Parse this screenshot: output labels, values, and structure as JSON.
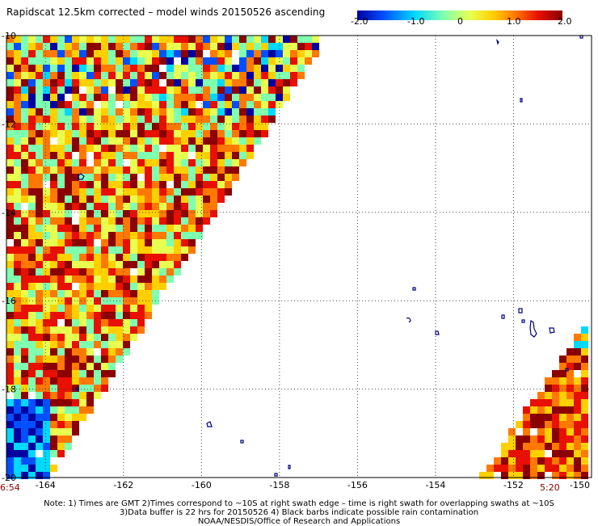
{
  "title": "Rapidscat 12.5km corrected – model winds 20150526 ascending",
  "colorbar": {
    "tick_labels": [
      "-2.0",
      "-1.0",
      "0",
      "1.0",
      "2.0"
    ],
    "range": [
      -2.0,
      2.0
    ],
    "colors": [
      "#0000a0",
      "#0050ff",
      "#00d8ff",
      "#7fffb0",
      "#e8ff50",
      "#ffd000",
      "#ff7800",
      "#e81000",
      "#8b0000"
    ]
  },
  "map": {
    "lon_labels": [
      "-164",
      "-162",
      "-160",
      "-158",
      "-156",
      "-154",
      "-152",
      "-150"
    ],
    "lat_labels": [
      "-10",
      "-12",
      "-14",
      "-16",
      "-18",
      "-20"
    ],
    "lon_range": [
      -165,
      -150
    ],
    "lat_range": [
      -20,
      -10
    ],
    "gridlines": "dotted",
    "land_color": "#000080"
  },
  "swath_times": {
    "left": "6:54",
    "right": "5:20"
  },
  "notes": [
    "Note: 1) Times are GMT 2)Times correspond to ~10S at right swath edge – time is right swath for overlapping swaths at ~10S",
    "3)Data buffer is 22 hrs for 20150526 4) Black barbs indicate possible rain contamination",
    "NOAA/NESDIS/Office of Research and Applications"
  ]
}
